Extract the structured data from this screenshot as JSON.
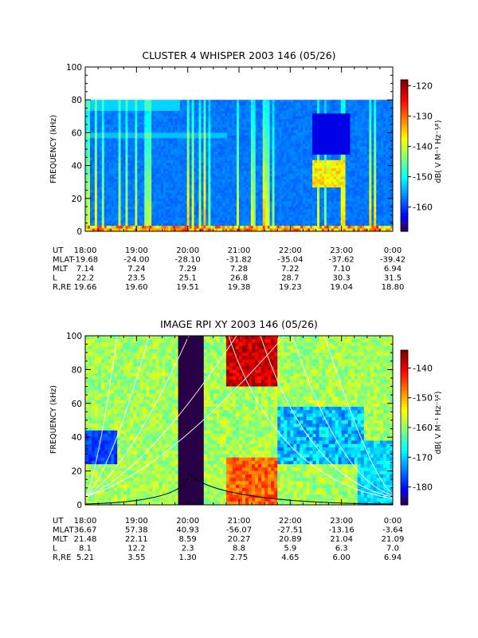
{
  "chart_data": [
    {
      "type": "heatmap",
      "title": "CLUSTER 4 WHISPER 2003 146 (05/26)",
      "ylabel": "FREQUENCY (kHz)",
      "y_ticks": [
        0,
        20,
        40,
        60,
        80,
        100
      ],
      "ylim": [
        0,
        100
      ],
      "data_ceiling_khz": 80,
      "x_ticks": [
        "18:00",
        "19:00",
        "20:00",
        "21:00",
        "22:00",
        "23:00",
        "0:00"
      ],
      "colorbar_label": "dB( V M⁻¹ Hz⁻¹⁄²)",
      "colorbar_ticks": [
        -120,
        -130,
        -140,
        -150,
        -160
      ],
      "colorbar_range": [
        -168,
        -118
      ],
      "ephemeris": [
        {
          "label": "UT",
          "values": [
            "18:00",
            "19:00",
            "20:00",
            "21:00",
            "22:00",
            "23:00",
            "0:00"
          ]
        },
        {
          "label": "MLAT",
          "values": [
            "-19.68",
            "-24.00",
            "-28.10",
            "-31.82",
            "-35.04",
            "-37.62",
            "-39.42"
          ]
        },
        {
          "label": "MLT",
          "values": [
            "7.14",
            "7.24",
            "7.29",
            "7.28",
            "7.22",
            "7.10",
            "6.94"
          ]
        },
        {
          "label": "L",
          "values": [
            "22.2",
            "23.5",
            "25.1",
            "26.8",
            "28.7",
            "30.3",
            "31.5"
          ]
        },
        {
          "label": "R,RE",
          "values": [
            "19.66",
            "19.60",
            "19.51",
            "19.38",
            "19.23",
            "19.04",
            "18.80"
          ]
        }
      ]
    },
    {
      "type": "heatmap",
      "title": "IMAGE RPI XY 2003 146 (05/26)",
      "ylabel": "FREQUENCY (kHz)",
      "y_ticks": [
        0,
        20,
        40,
        60,
        80,
        100
      ],
      "ylim": [
        0,
        100
      ],
      "x_ticks": [
        "18:00",
        "19:00",
        "20:00",
        "21:00",
        "22:00",
        "23:00",
        "0:00"
      ],
      "colorbar_label": "dB( V M⁻¹ Hz⁻¹⁄²)",
      "colorbar_ticks": [
        -140,
        -150,
        -160,
        -170,
        -180
      ],
      "colorbar_range": [
        -186,
        -134
      ],
      "ephemeris": [
        {
          "label": "UT",
          "values": [
            "18:00",
            "19:00",
            "20:00",
            "21:00",
            "22:00",
            "23:00",
            "0:00"
          ]
        },
        {
          "label": "MLAT",
          "values": [
            "36.67",
            "57.38",
            "40.93",
            "-56.07",
            "-27.51",
            "-13.16",
            "-3.64"
          ]
        },
        {
          "label": "MLT",
          "values": [
            "21.48",
            "22.11",
            "8.59",
            "20.27",
            "20.89",
            "21.04",
            "21.09"
          ]
        },
        {
          "label": "L",
          "values": [
            "8.1",
            "12.2",
            "2.3",
            "8.8",
            "5.9",
            "6.3",
            "7.0"
          ]
        },
        {
          "label": "R,RE",
          "values": [
            "5.21",
            "3.55",
            "1.30",
            "2.75",
            "4.65",
            "6.00",
            "6.94"
          ]
        }
      ]
    }
  ]
}
